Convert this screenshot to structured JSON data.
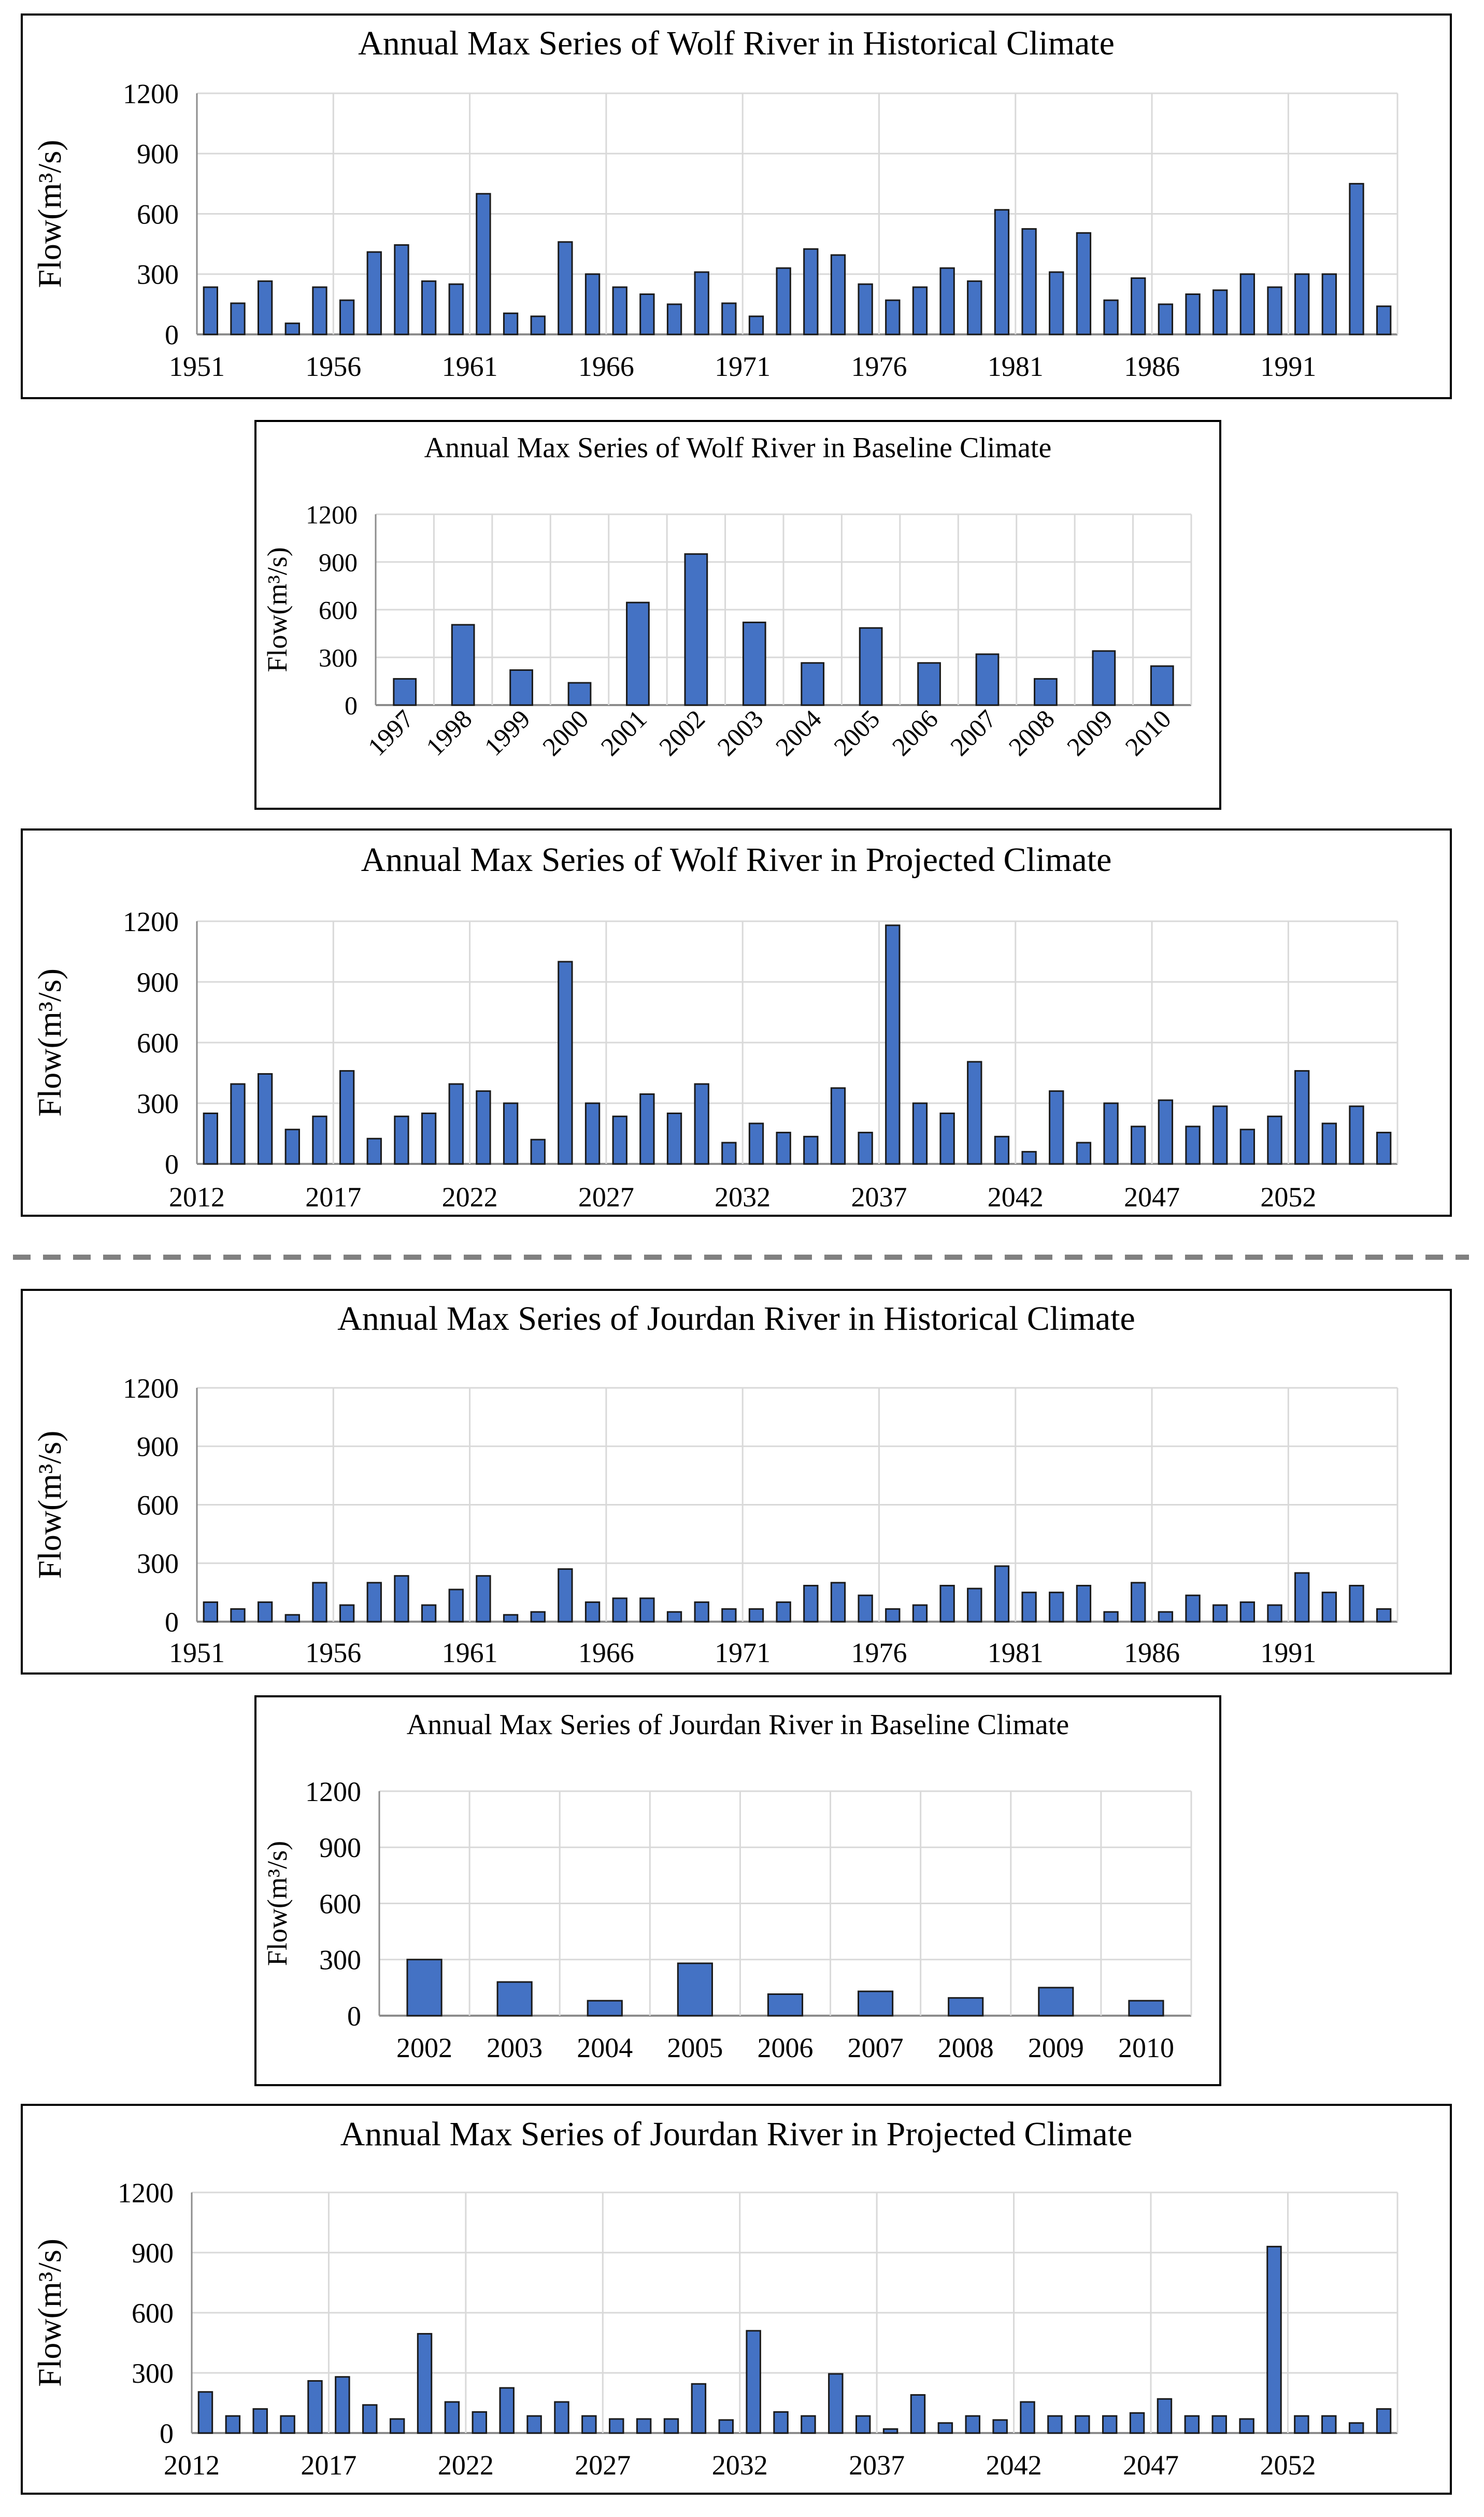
{
  "separator": {
    "style": "dashed",
    "color": "#808080"
  },
  "colors": {
    "bar_fill": "#4472C4",
    "bar_stroke": "#1a1a1a",
    "grid": "#d9d9d9",
    "frame": "#000000"
  },
  "chart_data": [
    {
      "type": "bar",
      "title": "Annual Max Series of Wolf River in Historical Climate",
      "xlabel": "",
      "ylabel": "Flow(m³/s)",
      "ylim": [
        0,
        1200
      ],
      "yticks": [
        0,
        300,
        600,
        900,
        1200
      ],
      "grid": true,
      "categories": [
        "1951",
        "1952",
        "1953",
        "1954",
        "1955",
        "1956",
        "1957",
        "1958",
        "1959",
        "1960",
        "1961",
        "1962",
        "1963",
        "1964",
        "1965",
        "1966",
        "1967",
        "1968",
        "1969",
        "1970",
        "1971",
        "1972",
        "1973",
        "1974",
        "1975",
        "1976",
        "1977",
        "1978",
        "1979",
        "1980",
        "1981",
        "1982",
        "1983",
        "1984",
        "1985",
        "1986",
        "1987",
        "1988",
        "1989",
        "1990",
        "1991",
        "1992",
        "1993",
        "1994"
      ],
      "xtick_labels": [
        "1951",
        "1956",
        "1961",
        "1966",
        "1971",
        "1976",
        "1981",
        "1986",
        "1991"
      ],
      "values": [
        235,
        155,
        265,
        55,
        235,
        170,
        410,
        445,
        265,
        250,
        700,
        105,
        90,
        460,
        300,
        235,
        200,
        150,
        310,
        155,
        90,
        330,
        425,
        395,
        250,
        170,
        235,
        330,
        265,
        620,
        525,
        310,
        505,
        170,
        280,
        150,
        200,
        220,
        300,
        235,
        300,
        300,
        750,
        140
      ]
    },
    {
      "type": "bar",
      "title": "Annual Max Series of Wolf River in Baseline Climate",
      "xlabel": "",
      "ylabel": "Flow(m³/s)",
      "ylim": [
        0,
        1200
      ],
      "yticks": [
        0,
        300,
        600,
        900,
        1200
      ],
      "grid": true,
      "categories": [
        "1997",
        "1998",
        "1999",
        "2000",
        "2001",
        "2002",
        "2003",
        "2004",
        "2005",
        "2006",
        "2007",
        "2008",
        "2009",
        "2010"
      ],
      "xtick_labels": [
        "1997",
        "1998",
        "1999",
        "2000",
        "2001",
        "2002",
        "2003",
        "2004",
        "2005",
        "2006",
        "2007",
        "2008",
        "2009",
        "2010"
      ],
      "values": [
        165,
        505,
        220,
        140,
        645,
        950,
        520,
        265,
        485,
        265,
        320,
        165,
        340,
        245
      ]
    },
    {
      "type": "bar",
      "title": "Annual Max Series of Wolf River in Projected Climate",
      "xlabel": "",
      "ylabel": "Flow(m³/s)",
      "ylim": [
        0,
        1200
      ],
      "yticks": [
        0,
        300,
        600,
        900,
        1200
      ],
      "grid": true,
      "categories": [
        "2012",
        "2013",
        "2014",
        "2015",
        "2016",
        "2017",
        "2018",
        "2019",
        "2020",
        "2021",
        "2022",
        "2023",
        "2024",
        "2025",
        "2026",
        "2027",
        "2028",
        "2029",
        "2030",
        "2031",
        "2032",
        "2033",
        "2034",
        "2035",
        "2036",
        "2037",
        "2038",
        "2039",
        "2040",
        "2041",
        "2042",
        "2043",
        "2044",
        "2045",
        "2046",
        "2047",
        "2048",
        "2049",
        "2050",
        "2051",
        "2052",
        "2053",
        "2054",
        "2055"
      ],
      "xtick_labels": [
        "2012",
        "2017",
        "2022",
        "2027",
        "2032",
        "2037",
        "2042",
        "2047",
        "2052"
      ],
      "values": [
        250,
        395,
        445,
        170,
        235,
        460,
        125,
        235,
        250,
        395,
        360,
        300,
        120,
        1000,
        300,
        235,
        345,
        250,
        395,
        105,
        200,
        155,
        135,
        375,
        155,
        1180,
        300,
        250,
        505,
        135,
        60,
        360,
        105,
        300,
        185,
        315,
        185,
        285,
        170,
        235,
        460,
        200,
        285,
        155
      ]
    },
    {
      "type": "bar",
      "title": "Annual Max Series of Jourdan River in Historical Climate",
      "xlabel": "",
      "ylabel": "Flow(m³/s)",
      "ylim": [
        0,
        1200
      ],
      "yticks": [
        0,
        300,
        600,
        900,
        1200
      ],
      "grid": true,
      "categories": [
        "1951",
        "1952",
        "1953",
        "1954",
        "1955",
        "1956",
        "1957",
        "1958",
        "1959",
        "1960",
        "1961",
        "1962",
        "1963",
        "1964",
        "1965",
        "1966",
        "1967",
        "1968",
        "1969",
        "1970",
        "1971",
        "1972",
        "1973",
        "1974",
        "1975",
        "1976",
        "1977",
        "1978",
        "1979",
        "1980",
        "1981",
        "1982",
        "1983",
        "1984",
        "1985",
        "1986",
        "1987",
        "1988",
        "1989",
        "1990",
        "1991",
        "1992",
        "1993",
        "1994"
      ],
      "xtick_labels": [
        "1951",
        "1956",
        "1961",
        "1966",
        "1971",
        "1976",
        "1981",
        "1986",
        "1991"
      ],
      "values": [
        100,
        65,
        100,
        35,
        200,
        85,
        200,
        235,
        85,
        165,
        235,
        35,
        50,
        270,
        100,
        120,
        120,
        50,
        100,
        65,
        65,
        100,
        185,
        200,
        135,
        65,
        85,
        185,
        170,
        285,
        150,
        150,
        185,
        50,
        200,
        50,
        135,
        85,
        100,
        85,
        250,
        150,
        185,
        65
      ]
    },
    {
      "type": "bar",
      "title": "Annual Max Series of Jourdan River in Baseline Climate",
      "xlabel": "",
      "ylabel": "Flow(m³/s)",
      "ylim": [
        0,
        1200
      ],
      "yticks": [
        0,
        300,
        600,
        900,
        1200
      ],
      "grid": true,
      "categories": [
        "2002",
        "2003",
        "2004",
        "2005",
        "2006",
        "2007",
        "2008",
        "2009",
        "2010"
      ],
      "xtick_labels": [
        "2002",
        "2003",
        "2004",
        "2005",
        "2006",
        "2007",
        "2008",
        "2009",
        "2010"
      ],
      "values": [
        300,
        180,
        80,
        280,
        115,
        130,
        95,
        150,
        80
      ]
    },
    {
      "type": "bar",
      "title": "Annual Max Series of Jourdan River in Projected Climate",
      "xlabel": "",
      "ylabel": "Flow(m³/s)",
      "ylim": [
        0,
        1200
      ],
      "yticks": [
        0,
        300,
        600,
        900,
        1200
      ],
      "grid": true,
      "categories": [
        "2012",
        "2013",
        "2014",
        "2015",
        "2016",
        "2017",
        "2018",
        "2019",
        "2020",
        "2021",
        "2022",
        "2023",
        "2024",
        "2025",
        "2026",
        "2027",
        "2028",
        "2029",
        "2030",
        "2031",
        "2032",
        "2033",
        "2034",
        "2035",
        "2036",
        "2037",
        "2038",
        "2039",
        "2040",
        "2041",
        "2042",
        "2043",
        "2044",
        "2045",
        "2046",
        "2047",
        "2048",
        "2049",
        "2050",
        "2051",
        "2052",
        "2053",
        "2054",
        "2055"
      ],
      "xtick_labels": [
        "2012",
        "2017",
        "2022",
        "2027",
        "2032",
        "2037",
        "2042",
        "2047",
        "2052"
      ],
      "values": [
        205,
        85,
        120,
        85,
        260,
        280,
        140,
        70,
        495,
        155,
        105,
        225,
        85,
        155,
        85,
        70,
        70,
        70,
        245,
        65,
        510,
        105,
        85,
        295,
        85,
        20,
        190,
        50,
        85,
        65,
        155,
        85,
        85,
        85,
        100,
        170,
        85,
        85,
        70,
        930,
        85,
        85,
        50,
        120
      ]
    }
  ]
}
